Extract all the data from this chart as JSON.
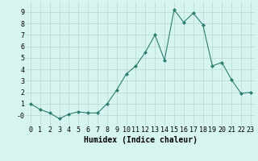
{
  "x": [
    0,
    1,
    2,
    3,
    4,
    5,
    6,
    7,
    8,
    9,
    10,
    11,
    12,
    13,
    14,
    15,
    16,
    17,
    18,
    19,
    20,
    21,
    22,
    23
  ],
  "y": [
    1.0,
    0.5,
    0.2,
    -0.3,
    0.1,
    0.3,
    0.2,
    0.2,
    1.0,
    2.2,
    3.6,
    4.3,
    5.5,
    7.0,
    4.8,
    9.2,
    8.1,
    8.9,
    7.9,
    4.3,
    4.6,
    3.1,
    1.9,
    2.0
  ],
  "line_color": "#2e7d6e",
  "marker": "D",
  "marker_size": 2,
  "bg_color": "#d6f5f0",
  "grid_color": "#b8d8d2",
  "xlabel": "Humidex (Indice chaleur)",
  "xlabel_fontsize": 7,
  "tick_fontsize": 6,
  "xlim": [
    -0.5,
    23.5
  ],
  "ylim": [
    -0.9,
    9.9
  ],
  "yticks": [
    0,
    1,
    2,
    3,
    4,
    5,
    6,
    7,
    8,
    9
  ],
  "ytick_labels": [
    "-0",
    "1",
    "2",
    "3",
    "4",
    "5",
    "6",
    "7",
    "8",
    "9"
  ],
  "xticks": [
    0,
    1,
    2,
    3,
    4,
    5,
    6,
    7,
    8,
    9,
    10,
    11,
    12,
    13,
    14,
    15,
    16,
    17,
    18,
    19,
    20,
    21,
    22,
    23
  ]
}
